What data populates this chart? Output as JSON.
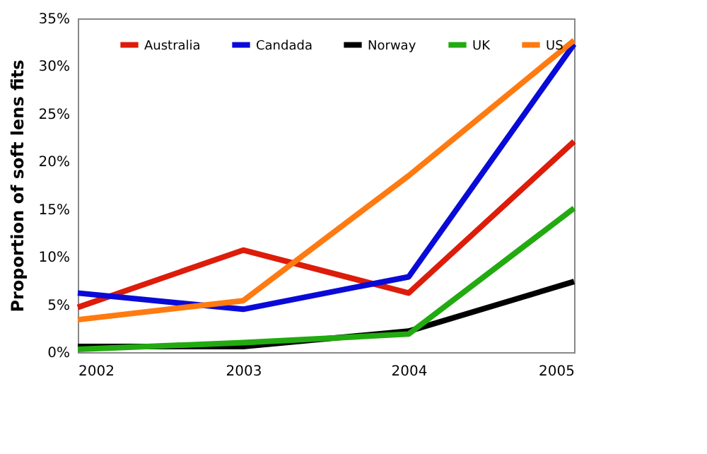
{
  "chart_data": {
    "type": "line",
    "ylabel": "Proportion of soft lens fits",
    "x": [
      2002,
      2003,
      2004,
      2005
    ],
    "xlim": [
      2002,
      2005
    ],
    "xticks": [
      2002,
      2003,
      2004,
      2005
    ],
    "ylim": [
      0,
      35
    ],
    "yticks": [
      {
        "value": 0,
        "label": "0%"
      },
      {
        "value": 5,
        "label": "5%"
      },
      {
        "value": 10,
        "label": "10%"
      },
      {
        "value": 15,
        "label": "15%"
      },
      {
        "value": 20,
        "label": "20%"
      },
      {
        "value": 25,
        "label": "25%"
      },
      {
        "value": 30,
        "label": "30%"
      },
      {
        "value": 35,
        "label": "35%"
      }
    ],
    "grid": false,
    "legend": "top",
    "marker": "none",
    "line_style": "solid",
    "series": [
      {
        "name": "Australia",
        "color": "#dd1c0a",
        "values": [
          4.7,
          10.7,
          6.2,
          22.1
        ]
      },
      {
        "name": "Candada",
        "color": "#0a0ad8",
        "values": [
          6.2,
          4.5,
          7.9,
          32.3
        ]
      },
      {
        "name": "Norway",
        "color": "#000000",
        "values": [
          0.6,
          0.6,
          2.2,
          7.4
        ]
      },
      {
        "name": "UK",
        "color": "#22aa10",
        "values": [
          0.3,
          1.0,
          1.9,
          15.1
        ]
      },
      {
        "name": "US",
        "color": "#ff7a10",
        "values": [
          3.4,
          5.4,
          18.5,
          32.7
        ]
      }
    ]
  }
}
